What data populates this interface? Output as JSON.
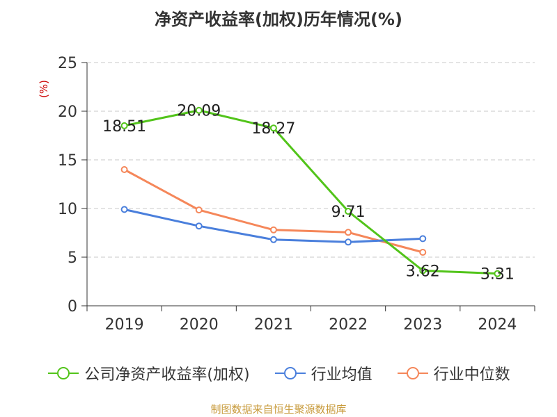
{
  "title": "净资产收益率(加权)历年情况(%)",
  "source": "制图数据来自恒生聚源数据库",
  "chart_data": {
    "type": "line",
    "title": "净资产收益率(加权)历年情况(%)",
    "ylabel": "(%)",
    "xlabel": "",
    "categories": [
      "2019",
      "2020",
      "2021",
      "2022",
      "2023",
      "2024"
    ],
    "ylim": [
      0,
      25
    ],
    "yticks": [
      0,
      5,
      10,
      15,
      20,
      25
    ],
    "grid": true,
    "legend_position": "bottom",
    "series": [
      {
        "name": "公司净资产收益率(加权)",
        "color": "#52c41a",
        "values": [
          18.51,
          20.09,
          18.27,
          9.71,
          3.62,
          3.31
        ],
        "labels": [
          "18.51",
          "20.09",
          "18.27",
          "9.71",
          "3.62",
          "3.31"
        ]
      },
      {
        "name": "行业均值",
        "color": "#4a7fdc",
        "values": [
          9.9,
          8.2,
          6.8,
          6.55,
          6.9,
          null
        ]
      },
      {
        "name": "行业中位数",
        "color": "#f5875a",
        "values": [
          14.0,
          9.85,
          7.8,
          7.55,
          5.5,
          null
        ]
      }
    ]
  }
}
